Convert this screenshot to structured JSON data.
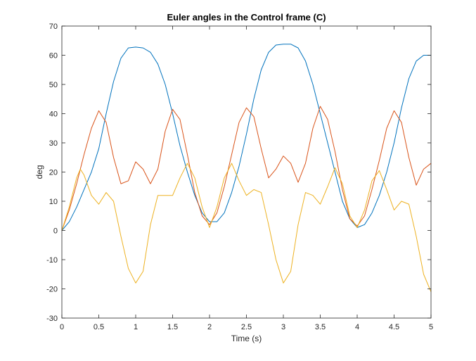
{
  "chart_data": {
    "type": "line",
    "title": "Euler angles in the Control frame (C)",
    "xlabel": "Time (s)",
    "ylabel": "deg",
    "xlim": [
      0,
      5
    ],
    "ylim": [
      -30,
      70
    ],
    "xticks": [
      0,
      0.5,
      1,
      1.5,
      2,
      2.5,
      3,
      3.5,
      4,
      4.5,
      5
    ],
    "xtick_labels": [
      "0",
      "0.5",
      "1",
      "1.5",
      "2",
      "2.5",
      "3",
      "3.5",
      "4",
      "4.5",
      "5"
    ],
    "yticks": [
      -30,
      -20,
      -10,
      0,
      10,
      20,
      30,
      40,
      50,
      60,
      70
    ],
    "ytick_labels": [
      "-30",
      "-20",
      "-10",
      "0",
      "10",
      "20",
      "30",
      "40",
      "50",
      "60",
      "70"
    ],
    "grid": false,
    "legend": "none",
    "series": [
      {
        "color": "#0072BD",
        "x": [
          0,
          0.1,
          0.2,
          0.3,
          0.4,
          0.5,
          0.6,
          0.7,
          0.8,
          0.9,
          1.0,
          1.1,
          1.2,
          1.3,
          1.4,
          1.5,
          1.6,
          1.7,
          1.8,
          1.9,
          2.0,
          2.1,
          2.2,
          2.3,
          2.4,
          2.5,
          2.6,
          2.7,
          2.8,
          2.9,
          3.0,
          3.1,
          3.2,
          3.3,
          3.4,
          3.5,
          3.6,
          3.7,
          3.8,
          3.9,
          4.0,
          4.1,
          4.2,
          4.3,
          4.4,
          4.5,
          4.6,
          4.7,
          4.8,
          4.9,
          5.0
        ],
        "values": [
          0,
          3,
          8,
          14,
          20,
          28,
          40,
          51,
          59,
          62.5,
          62.8,
          62.5,
          61,
          57,
          50,
          40,
          29,
          20,
          12,
          6,
          3,
          3,
          6,
          13,
          22,
          33,
          45,
          55,
          61,
          63.5,
          63.8,
          63.8,
          62.5,
          58,
          50,
          40,
          30,
          20,
          10,
          4,
          1,
          2,
          6,
          12,
          20,
          30,
          42,
          52,
          58,
          60,
          60
        ]
      },
      {
        "color": "#D95319",
        "x": [
          0,
          0.1,
          0.2,
          0.3,
          0.4,
          0.5,
          0.6,
          0.7,
          0.8,
          0.9,
          1.0,
          1.1,
          1.2,
          1.3,
          1.4,
          1.5,
          1.6,
          1.7,
          1.8,
          1.9,
          2.0,
          2.1,
          2.2,
          2.3,
          2.4,
          2.5,
          2.6,
          2.7,
          2.8,
          2.9,
          3.0,
          3.1,
          3.2,
          3.3,
          3.4,
          3.5,
          3.6,
          3.7,
          3.8,
          3.9,
          4.0,
          4.1,
          4.2,
          4.3,
          4.4,
          4.5,
          4.6,
          4.7,
          4.8,
          4.9,
          5.0
        ],
        "values": [
          0,
          7,
          16,
          26,
          35,
          41,
          37,
          25,
          16,
          17,
          23.5,
          21,
          16,
          21,
          34,
          41.5,
          38,
          26,
          13,
          5,
          2,
          6,
          15,
          26,
          37,
          42,
          39,
          28,
          18,
          21,
          25.5,
          23,
          16.5,
          23,
          35,
          42.5,
          38,
          27,
          14,
          4,
          1.5,
          5,
          14,
          24,
          35,
          41,
          37,
          25,
          15.5,
          21,
          23
        ]
      },
      {
        "color": "#EDB120",
        "x": [
          0,
          0.1,
          0.2,
          0.25,
          0.3,
          0.4,
          0.5,
          0.6,
          0.7,
          0.8,
          0.9,
          1.0,
          1.1,
          1.2,
          1.3,
          1.4,
          1.5,
          1.6,
          1.7,
          1.8,
          1.9,
          2.0,
          2.1,
          2.2,
          2.3,
          2.4,
          2.5,
          2.6,
          2.7,
          2.8,
          2.9,
          3.0,
          3.1,
          3.2,
          3.3,
          3.4,
          3.5,
          3.6,
          3.7,
          3.8,
          3.9,
          4.0,
          4.1,
          4.2,
          4.3,
          4.4,
          4.5,
          4.6,
          4.7,
          4.8,
          4.9,
          5.0
        ],
        "values": [
          0,
          8,
          18,
          21,
          19,
          12,
          9,
          13,
          10,
          -2,
          -13,
          -18,
          -14,
          2,
          12,
          12,
          12,
          18,
          23,
          18,
          8,
          1,
          8,
          18,
          23,
          17,
          12,
          14,
          13,
          2,
          -10,
          -18,
          -14,
          2,
          13,
          12,
          9,
          15,
          21.5,
          16,
          5,
          1,
          7,
          17,
          20.5,
          14,
          7,
          10,
          9,
          -2,
          -15,
          -21
        ]
      }
    ]
  }
}
